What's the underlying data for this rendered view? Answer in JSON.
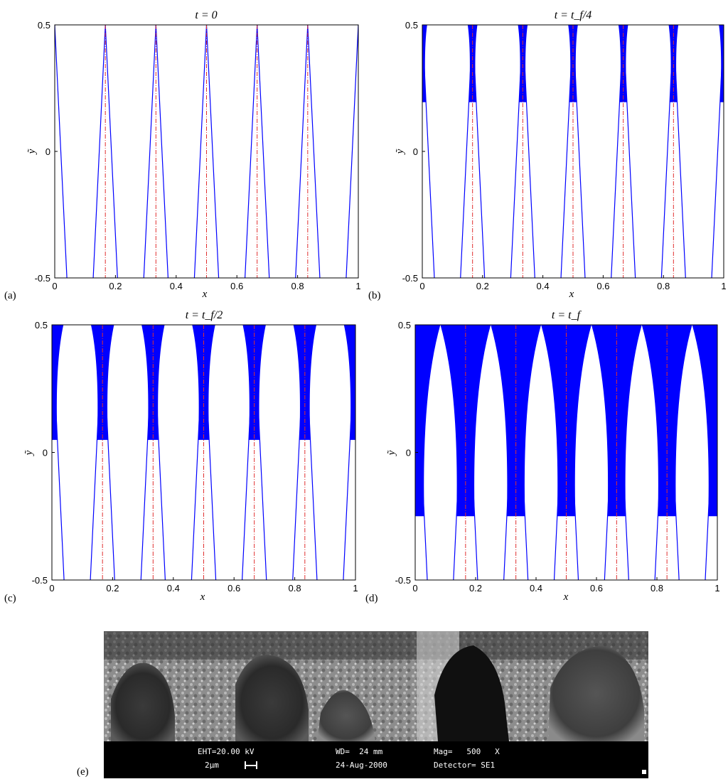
{
  "chart_data": [
    {
      "type": "area",
      "panel": "(a)",
      "title": "t = 0",
      "xlabel": "x",
      "ylabel": "ỹ",
      "xlim": [
        0,
        1
      ],
      "ylim": [
        -0.5,
        0.5
      ],
      "x_ticks": [
        "0",
        "0.2",
        "0.4",
        "0.6",
        "0.8",
        "1"
      ],
      "y_ticks": [
        "-0.5",
        "0",
        "0.5"
      ],
      "grid": false,
      "tip_positions": [
        0,
        0.1667,
        0.3333,
        0.5,
        0.6667,
        0.8333,
        1.0
      ],
      "tip_y": 0.5,
      "base_half_width_y_minus_half": 0.04,
      "fill_top_half_width": 0.0
    },
    {
      "type": "area",
      "panel": "(b)",
      "title": "t = t_f/4",
      "xlabel": "x",
      "ylabel": "ỹ",
      "xlim": [
        0,
        1
      ],
      "ylim": [
        -0.5,
        0.5
      ],
      "x_ticks": [
        "0",
        "0.2",
        "0.4",
        "0.6",
        "0.8",
        "1"
      ],
      "y_ticks": [
        "-0.5",
        "0",
        "0.5"
      ],
      "grid": false,
      "tip_positions": [
        0,
        0.1667,
        0.3333,
        0.5,
        0.6667,
        0.8333,
        1.0
      ],
      "tip_y": 0.5,
      "base_half_width_y_minus_half": 0.04,
      "fill_top_half_width": 0.016
    },
    {
      "type": "area",
      "panel": "(c)",
      "title": "t = t_f/2",
      "xlabel": "x",
      "ylabel": "ỹ",
      "xlim": [
        0,
        1
      ],
      "ylim": [
        -0.5,
        0.5
      ],
      "x_ticks": [
        "0",
        "0.2",
        "0.4",
        "0.6",
        "0.8",
        "1"
      ],
      "y_ticks": [
        "-0.5",
        "0",
        "0.5"
      ],
      "grid": false,
      "tip_positions": [
        0,
        0.1667,
        0.3333,
        0.5,
        0.6667,
        0.8333,
        1.0
      ],
      "tip_y": 0.5,
      "base_half_width_y_minus_half": 0.04,
      "fill_top_half_width": 0.038
    },
    {
      "type": "area",
      "panel": "(d)",
      "title": "t = t_f",
      "xlabel": "x",
      "ylabel": "ỹ",
      "xlim": [
        0,
        1
      ],
      "ylim": [
        -0.5,
        0.5
      ],
      "x_ticks": [
        "0",
        "0.2",
        "0.4",
        "0.6",
        "0.8",
        "1"
      ],
      "y_ticks": [
        "-0.5",
        "0",
        "0.5"
      ],
      "grid": false,
      "tip_positions": [
        0,
        0.1667,
        0.3333,
        0.5,
        0.6667,
        0.8333,
        1.0
      ],
      "tip_y": 0.5,
      "base_half_width_y_minus_half": 0.04,
      "fill_top_half_width": 0.0833
    }
  ],
  "colors": {
    "interface": "#0000ff",
    "fill": "#0000ff",
    "centerline": "#e03030",
    "axes": "#000000",
    "sem_bar_text": "#ffffff"
  },
  "sem_panel": {
    "tag": "(e)",
    "line1": {
      "eht": "EHT=20.00 kV",
      "wd": "WD=  24 mm",
      "mag": "Mag=   500   X"
    },
    "line2": {
      "scale": "2µm",
      "date": "24-Aug-2000",
      "detector": "Detector= SE1"
    }
  }
}
